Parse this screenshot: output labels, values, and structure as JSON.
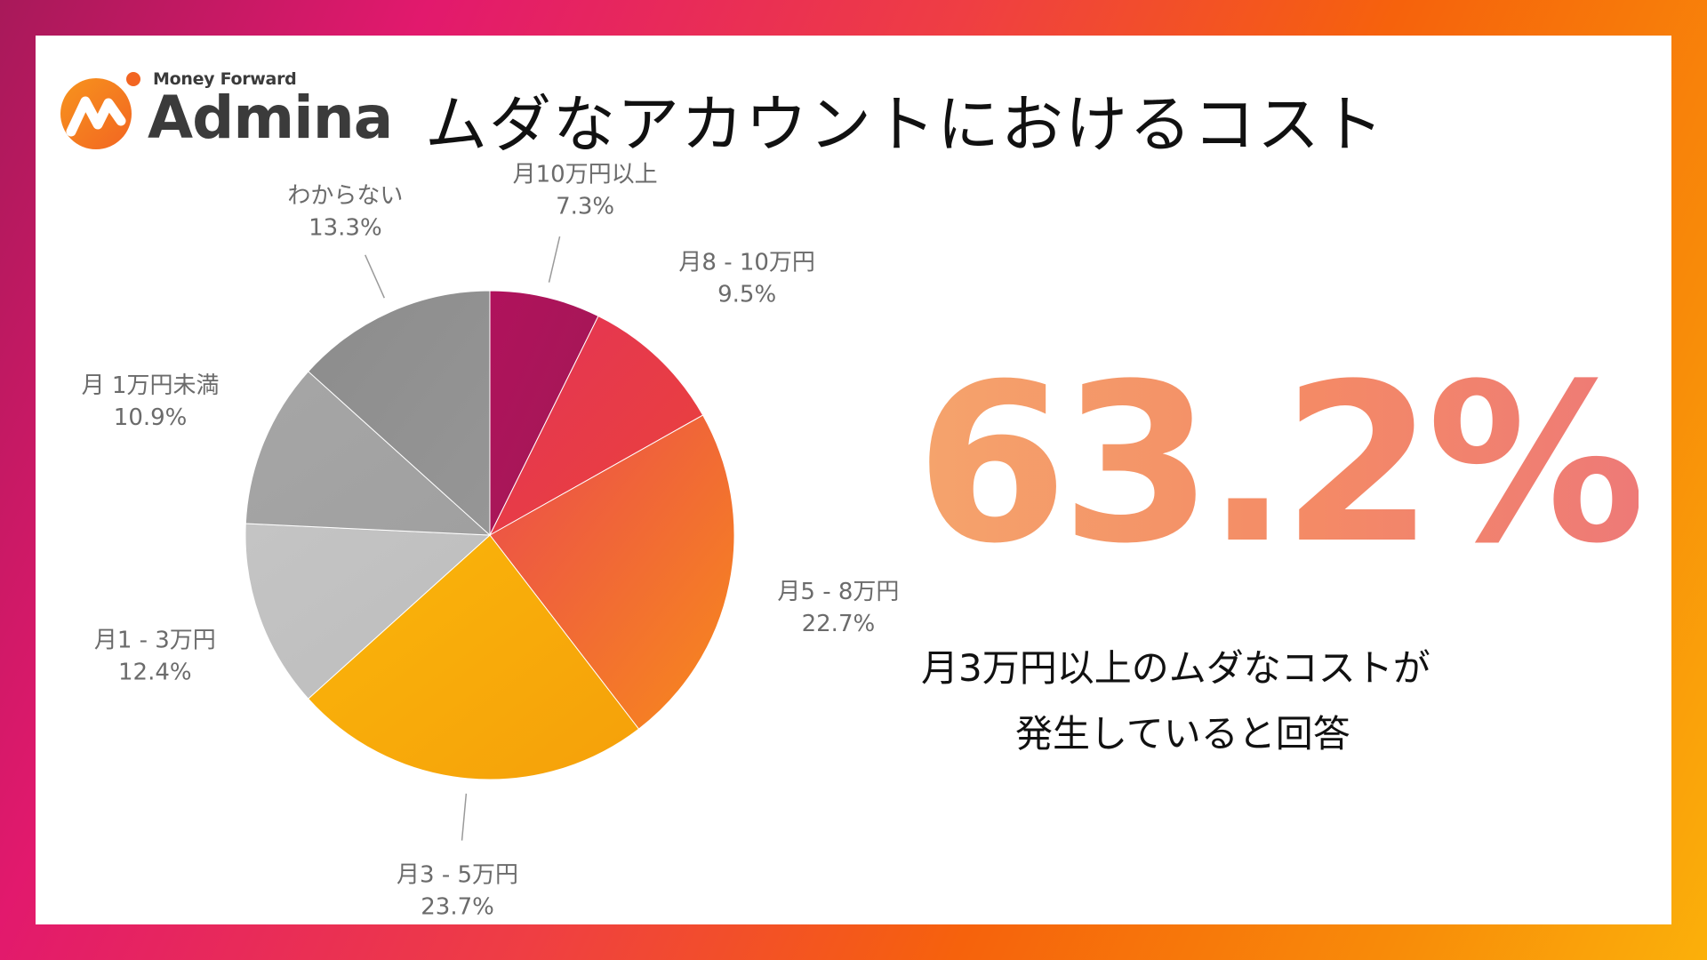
{
  "brand": {
    "small": "Money Forward",
    "name": "Admina"
  },
  "title": "ムダなアカウントにおけるコスト",
  "highlight": {
    "value": "63.2%",
    "caption_line1": "月3万円以上のムダなコストが",
    "caption_line2": "発生していると回答"
  },
  "colors": {
    "frame_gradient": [
      "#a8195a",
      "#e2196d",
      "#f6620c",
      "#fbb00a"
    ],
    "highlight_gradient": [
      "#f5a46c",
      "#ee7a77"
    ],
    "label_text": "#6b6b6b"
  },
  "chart_data": {
    "type": "pie",
    "start": "12 o'clock",
    "direction": "clockwise",
    "series": [
      {
        "name": "月10万円以上",
        "value": 7.3,
        "label": "7.3%",
        "colors": [
          "#b0125c",
          "#a11a55"
        ]
      },
      {
        "name": "月8 - 10万円",
        "value": 9.5,
        "label": "9.5%",
        "colors": [
          "#e43456",
          "#ea423a"
        ]
      },
      {
        "name": "月5 - 8万円",
        "value": 22.7,
        "label": "22.7%",
        "colors": [
          "#ea4a4e",
          "#f88a1b"
        ]
      },
      {
        "name": "月3 - 5万円",
        "value": 23.7,
        "label": "23.7%",
        "colors": [
          "#fbb60a",
          "#f5a00a"
        ]
      },
      {
        "name": "月1 - 3万円",
        "value": 12.4,
        "label": "12.4%",
        "colors": [
          "#c4c4c4",
          "#bdbdbd"
        ]
      },
      {
        "name": "月 1万円未満",
        "value": 10.9,
        "label": "10.9%",
        "colors": [
          "#a6a6a6",
          "#a0a0a0"
        ]
      },
      {
        "name": "わからない",
        "value": 13.3,
        "label": "13.3%",
        "colors": [
          "#8c8c8c",
          "#969696"
        ]
      }
    ]
  }
}
